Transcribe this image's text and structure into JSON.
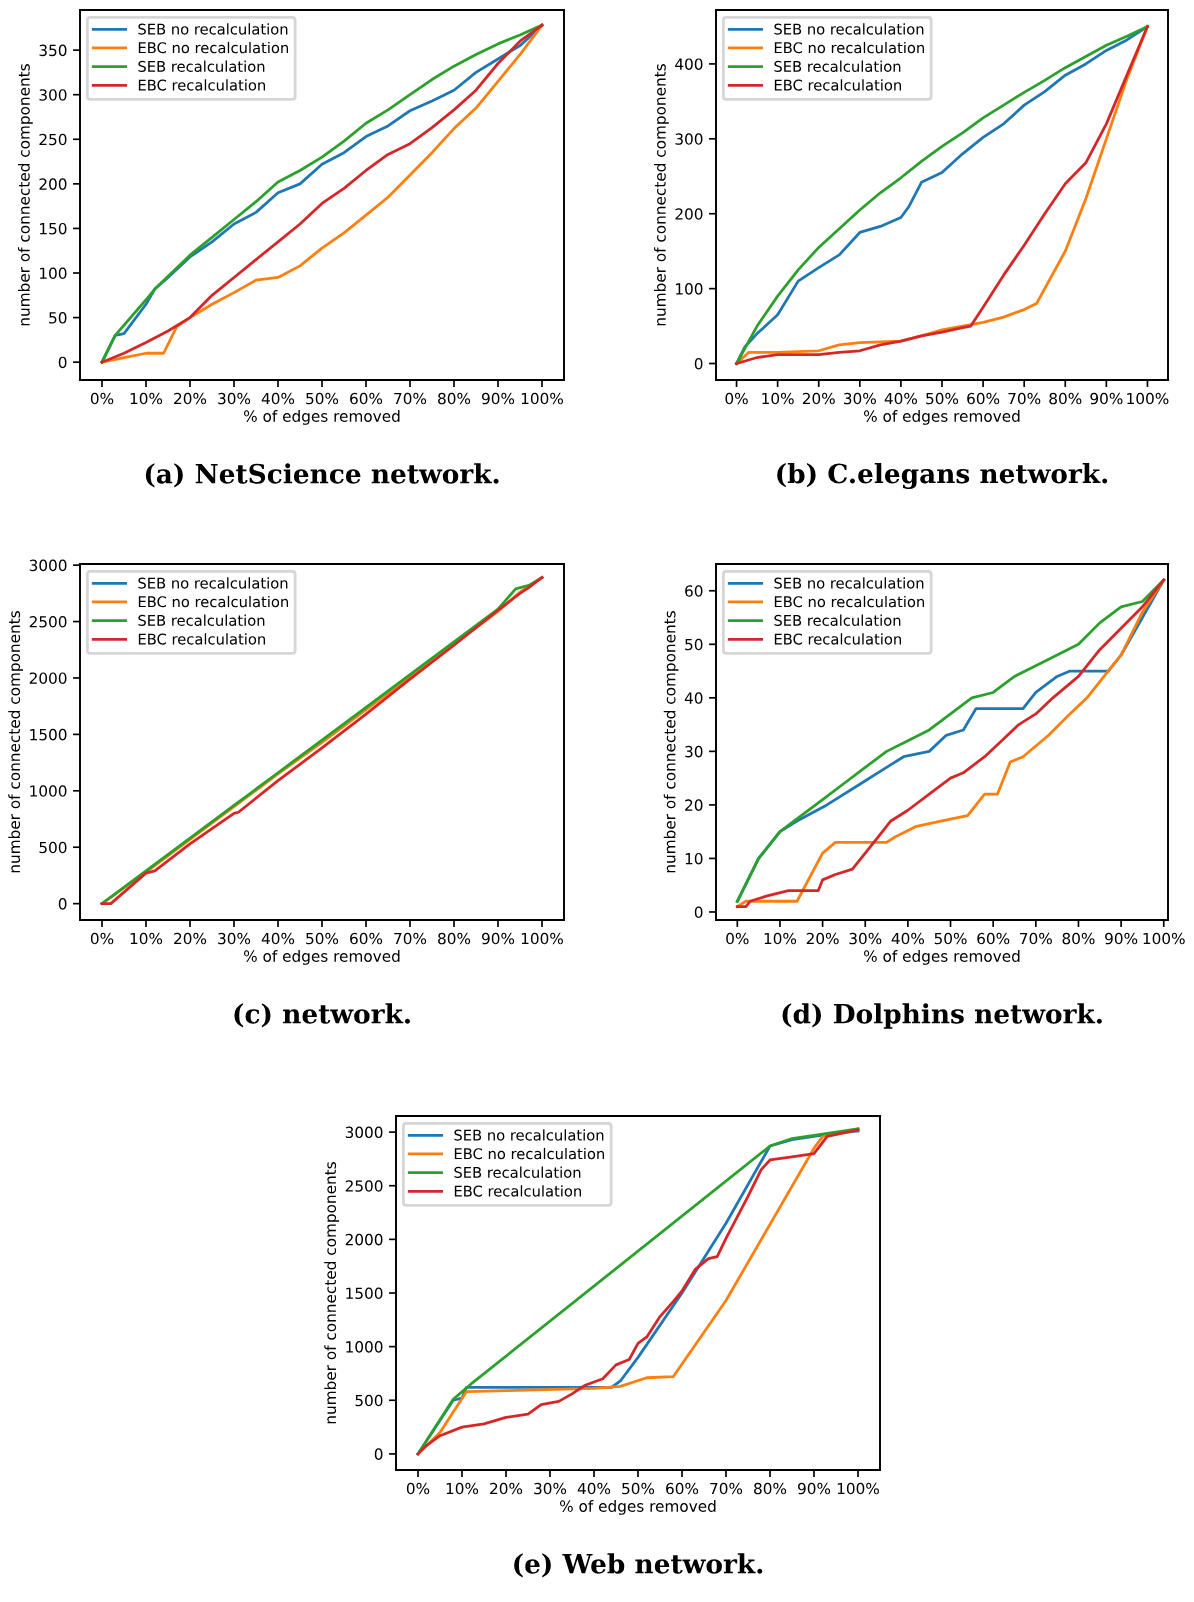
{
  "chart_data": [
    {
      "type": "line",
      "title": "(a) NetScience network.",
      "xlabel": "% of edges removed",
      "ylabel": "number of connected components",
      "xlim": [
        -5,
        105
      ],
      "ylim": [
        -20,
        395
      ],
      "xticks": [
        {
          "value": 0,
          "label": "0%"
        },
        {
          "value": 10,
          "label": "10%"
        },
        {
          "value": 20,
          "label": "20%"
        },
        {
          "value": 30,
          "label": "30%"
        },
        {
          "value": 40,
          "label": "40%"
        },
        {
          "value": 50,
          "label": "50%"
        },
        {
          "value": 60,
          "label": "60%"
        },
        {
          "value": 70,
          "label": "70%"
        },
        {
          "value": 80,
          "label": "80%"
        },
        {
          "value": 90,
          "label": "90%"
        },
        {
          "value": 100,
          "label": "100%"
        }
      ],
      "yticks": [
        0,
        50,
        100,
        150,
        200,
        250,
        300,
        350
      ],
      "grid": false,
      "legend": "top left",
      "series": [
        {
          "name": "SEB no recalculation",
          "color": "#1f77b4",
          "x": [
            0,
            3,
            5,
            10,
            12,
            15,
            20,
            25,
            30,
            35,
            40,
            45,
            50,
            55,
            60,
            65,
            70,
            75,
            80,
            85,
            90,
            95,
            100
          ],
          "values": [
            0,
            30,
            32,
            65,
            82,
            95,
            118,
            135,
            155,
            168,
            190,
            200,
            222,
            235,
            253,
            265,
            282,
            293,
            305,
            325,
            340,
            355,
            378
          ]
        },
        {
          "name": "EBC no recalculation",
          "color": "#ff7f0e",
          "x": [
            0,
            5,
            10,
            14,
            17,
            20,
            25,
            30,
            35,
            40,
            45,
            50,
            55,
            60,
            65,
            70,
            75,
            80,
            85,
            90,
            95,
            100
          ],
          "values": [
            0,
            5,
            10,
            10,
            40,
            50,
            65,
            78,
            92,
            95,
            108,
            128,
            145,
            165,
            185,
            210,
            235,
            262,
            285,
            315,
            345,
            378
          ]
        },
        {
          "name": "SEB recalculation",
          "color": "#2ca02c",
          "x": [
            0,
            3,
            10,
            12,
            20,
            25,
            30,
            35,
            40,
            45,
            50,
            55,
            60,
            65,
            70,
            75,
            80,
            85,
            90,
            95,
            100
          ],
          "values": [
            0,
            30,
            70,
            82,
            120,
            140,
            160,
            180,
            202,
            215,
            230,
            248,
            268,
            283,
            300,
            317,
            332,
            345,
            357,
            367,
            378
          ]
        },
        {
          "name": "EBC recalculation",
          "color": "#d62728",
          "x": [
            0,
            5,
            10,
            15,
            20,
            25,
            30,
            35,
            40,
            45,
            50,
            55,
            60,
            65,
            70,
            75,
            80,
            85,
            90,
            95,
            100
          ],
          "values": [
            0,
            10,
            22,
            35,
            50,
            75,
            95,
            115,
            135,
            155,
            178,
            195,
            215,
            233,
            245,
            263,
            283,
            305,
            335,
            360,
            378
          ]
        }
      ]
    },
    {
      "type": "line",
      "title": "(b) C.elegans network.",
      "xlabel": "% of edges removed",
      "ylabel": "number of connected components",
      "xlim": [
        -5,
        105
      ],
      "ylim": [
        -22,
        472
      ],
      "xticks": [
        {
          "value": 0,
          "label": "0%"
        },
        {
          "value": 10,
          "label": "10%"
        },
        {
          "value": 20,
          "label": "20%"
        },
        {
          "value": 30,
          "label": "30%"
        },
        {
          "value": 40,
          "label": "40%"
        },
        {
          "value": 50,
          "label": "50%"
        },
        {
          "value": 60,
          "label": "60%"
        },
        {
          "value": 70,
          "label": "70%"
        },
        {
          "value": 80,
          "label": "80%"
        },
        {
          "value": 90,
          "label": "90%"
        },
        {
          "value": 100,
          "label": "100%"
        }
      ],
      "yticks": [
        0,
        100,
        200,
        300,
        400
      ],
      "grid": false,
      "legend": "top left",
      "series": [
        {
          "name": "SEB no recalculation",
          "color": "#1f77b4",
          "x": [
            0,
            2,
            5,
            10,
            15,
            20,
            25,
            30,
            35,
            40,
            42,
            45,
            50,
            55,
            60,
            65,
            70,
            75,
            80,
            85,
            90,
            95,
            100
          ],
          "values": [
            0,
            22,
            40,
            65,
            110,
            128,
            145,
            175,
            183,
            195,
            210,
            242,
            255,
            280,
            302,
            320,
            345,
            363,
            385,
            400,
            418,
            432,
            450
          ]
        },
        {
          "name": "EBC no recalculation",
          "color": "#ff7f0e",
          "x": [
            0,
            3,
            10,
            20,
            25,
            30,
            40,
            45,
            50,
            55,
            60,
            65,
            70,
            73,
            75,
            80,
            85,
            90,
            95,
            100
          ],
          "values": [
            0,
            15,
            15,
            17,
            25,
            28,
            30,
            37,
            45,
            50,
            55,
            62,
            72,
            80,
            100,
            150,
            220,
            300,
            380,
            450
          ]
        },
        {
          "name": "SEB recalculation",
          "color": "#2ca02c",
          "x": [
            0,
            5,
            10,
            15,
            20,
            25,
            30,
            35,
            40,
            45,
            50,
            55,
            60,
            65,
            70,
            75,
            80,
            85,
            90,
            95,
            100
          ],
          "values": [
            0,
            50,
            90,
            125,
            155,
            180,
            205,
            228,
            248,
            270,
            290,
            308,
            328,
            345,
            362,
            378,
            395,
            410,
            425,
            437,
            450
          ]
        },
        {
          "name": "EBC recalculation",
          "color": "#d62728",
          "x": [
            0,
            5,
            10,
            20,
            25,
            30,
            35,
            40,
            45,
            50,
            55,
            57,
            60,
            65,
            70,
            75,
            80,
            85,
            90,
            95,
            100
          ],
          "values": [
            0,
            8,
            12,
            12,
            15,
            17,
            25,
            30,
            37,
            42,
            48,
            50,
            75,
            118,
            158,
            200,
            240,
            268,
            320,
            385,
            450
          ]
        }
      ]
    },
    {
      "type": "line",
      "title": "(c) network.",
      "xlabel": "% of edges removed",
      "ylabel": "number of connected components",
      "xlim": [
        -5,
        105
      ],
      "ylim": [
        -145,
        3010
      ],
      "xticks": [
        {
          "value": 0,
          "label": "0%"
        },
        {
          "value": 10,
          "label": "10%"
        },
        {
          "value": 20,
          "label": "20%"
        },
        {
          "value": 30,
          "label": "30%"
        },
        {
          "value": 40,
          "label": "40%"
        },
        {
          "value": 50,
          "label": "50%"
        },
        {
          "value": 60,
          "label": "60%"
        },
        {
          "value": 70,
          "label": "70%"
        },
        {
          "value": 80,
          "label": "80%"
        },
        {
          "value": 90,
          "label": "90%"
        },
        {
          "value": 100,
          "label": "100%"
        }
      ],
      "yticks": [
        0,
        500,
        1000,
        1500,
        2000,
        2500,
        3000
      ],
      "grid": false,
      "legend": "top left",
      "series": [
        {
          "name": "SEB no recalculation",
          "color": "#1f77b4"
        },
        {
          "name": "EBC no recalculation",
          "color": "#ff7f0e",
          "x": [
            0,
            10,
            20,
            30,
            40,
            50,
            60,
            70,
            80,
            90,
            95,
            100
          ],
          "values": [
            0,
            280,
            570,
            860,
            1150,
            1430,
            1720,
            2010,
            2300,
            2590,
            2760,
            2890
          ]
        },
        {
          "name": "SEB recalculation",
          "color": "#2ca02c",
          "x": [
            0,
            10,
            20,
            30,
            40,
            50,
            60,
            70,
            80,
            90,
            94,
            97,
            100
          ],
          "values": [
            0,
            290,
            580,
            870,
            1160,
            1450,
            1740,
            2030,
            2320,
            2610,
            2790,
            2820,
            2890
          ]
        },
        {
          "name": "EBC recalculation",
          "color": "#d62728",
          "x": [
            0,
            2,
            10,
            12,
            20,
            30,
            31,
            40,
            50,
            60,
            70,
            80,
            90,
            95,
            97,
            100
          ],
          "values": [
            0,
            0,
            270,
            290,
            530,
            800,
            810,
            1090,
            1380,
            1680,
            1990,
            2290,
            2600,
            2750,
            2800,
            2890
          ]
        }
      ]
    },
    {
      "type": "line",
      "title": "(d) Dolphins network.",
      "xlabel": "% of edges removed",
      "ylabel": "number of connected components",
      "xlim": [
        -5,
        101
      ],
      "ylim": [
        -1.5,
        65
      ],
      "xticks": [
        {
          "value": 0,
          "label": "0%"
        },
        {
          "value": 10,
          "label": "10%"
        },
        {
          "value": 20,
          "label": "20%"
        },
        {
          "value": 30,
          "label": "30%"
        },
        {
          "value": 40,
          "label": "40%"
        },
        {
          "value": 50,
          "label": "50%"
        },
        {
          "value": 60,
          "label": "60%"
        },
        {
          "value": 70,
          "label": "70%"
        },
        {
          "value": 80,
          "label": "80%"
        },
        {
          "value": 90,
          "label": "90%"
        },
        {
          "value": 100,
          "label": "100%"
        }
      ],
      "yticks": [
        0,
        10,
        20,
        30,
        40,
        50,
        60
      ],
      "grid": false,
      "legend": "top left",
      "series": [
        {
          "name": "SEB no recalculation",
          "color": "#1f77b4",
          "x": [
            0,
            5,
            10,
            14,
            21,
            29,
            35,
            39,
            45,
            49,
            53,
            56,
            67,
            70,
            75,
            78,
            87,
            90,
            95,
            100
          ],
          "values": [
            2,
            10,
            15,
            17,
            20,
            24,
            27,
            29,
            30,
            33,
            34,
            38,
            38,
            41,
            44,
            45,
            45,
            48,
            55,
            62
          ]
        },
        {
          "name": "EBC no recalculation",
          "color": "#ff7f0e",
          "x": [
            0,
            2,
            14,
            20,
            23,
            35,
            37,
            42,
            48,
            54,
            58,
            61,
            64,
            67,
            70,
            73,
            78,
            82,
            88,
            90,
            95,
            100
          ],
          "values": [
            1,
            2,
            2,
            11,
            13,
            13,
            14,
            16,
            17,
            18,
            22,
            22,
            28,
            29,
            31,
            33,
            37,
            40,
            46,
            48,
            56,
            62
          ]
        },
        {
          "name": "SEB recalculation",
          "color": "#2ca02c",
          "x": [
            0,
            5,
            10,
            15,
            20,
            25,
            30,
            35,
            40,
            45,
            50,
            55,
            60,
            65,
            70,
            75,
            80,
            85,
            90,
            95,
            100
          ],
          "values": [
            2,
            10,
            15,
            18,
            21,
            24,
            27,
            30,
            32,
            34,
            37,
            40,
            41,
            44,
            46,
            48,
            50,
            54,
            57,
            58,
            62
          ]
        },
        {
          "name": "EBC recalculation",
          "color": "#d62728",
          "x": [
            0,
            2,
            3,
            7,
            12,
            19,
            20,
            23,
            27,
            30,
            33,
            36,
            40,
            45,
            50,
            53,
            58,
            62,
            66,
            70,
            74,
            80,
            85,
            90,
            95,
            100
          ],
          "values": [
            1,
            1,
            2,
            3,
            4,
            4,
            6,
            7,
            8,
            11,
            14,
            17,
            19,
            22,
            25,
            26,
            29,
            32,
            35,
            37,
            40,
            44,
            49,
            53,
            57,
            62
          ]
        }
      ]
    },
    {
      "type": "line",
      "title": "(e) Web network.",
      "xlabel": "% of edges removed",
      "ylabel": "number of connected components",
      "xlim": [
        -5,
        105
      ],
      "ylim": [
        -150,
        3150
      ],
      "xticks": [
        {
          "value": 0,
          "label": "0%"
        },
        {
          "value": 10,
          "label": "10%"
        },
        {
          "value": 20,
          "label": "20%"
        },
        {
          "value": 30,
          "label": "30%"
        },
        {
          "value": 40,
          "label": "40%"
        },
        {
          "value": 50,
          "label": "50%"
        },
        {
          "value": 60,
          "label": "60%"
        },
        {
          "value": 70,
          "label": "70%"
        },
        {
          "value": 80,
          "label": "80%"
        },
        {
          "value": 90,
          "label": "90%"
        },
        {
          "value": 100,
          "label": "100%"
        }
      ],
      "yticks": [
        0,
        500,
        1000,
        1500,
        2000,
        2500,
        3000
      ],
      "grid": false,
      "legend": "top left",
      "series": [
        {
          "name": "SEB no recalculation",
          "color": "#1f77b4",
          "x": [
            0,
            8,
            10,
            11,
            44,
            46,
            50,
            60,
            70,
            80,
            85,
            90,
            95,
            100
          ],
          "values": [
            0,
            500,
            520,
            620,
            620,
            680,
            900,
            1500,
            2150,
            2870,
            2930,
            2960,
            2990,
            3010
          ]
        },
        {
          "name": "EBC no recalculation",
          "color": "#ff7f0e",
          "x": [
            0,
            5,
            11,
            20,
            40,
            46,
            52,
            58,
            70,
            80,
            90,
            92,
            100
          ],
          "values": [
            0,
            200,
            580,
            590,
            610,
            630,
            710,
            720,
            1430,
            2140,
            2850,
            2960,
            3030
          ]
        },
        {
          "name": "SEB recalculation",
          "color": "#2ca02c",
          "x": [
            0,
            8,
            12,
            80,
            85,
            90,
            100
          ],
          "values": [
            0,
            510,
            650,
            2870,
            2940,
            2970,
            3030
          ]
        },
        {
          "name": "EBC recalculation",
          "color": "#d62728",
          "x": [
            0,
            2,
            5,
            10,
            15,
            20,
            25,
            28,
            32,
            35,
            38,
            42,
            45,
            48,
            50,
            52,
            55,
            58,
            60,
            63,
            66,
            68,
            70,
            75,
            78,
            80,
            85,
            90,
            93,
            100
          ],
          "values": [
            0,
            80,
            170,
            250,
            280,
            340,
            370,
            460,
            490,
            560,
            640,
            700,
            830,
            880,
            1030,
            1090,
            1280,
            1420,
            1520,
            1720,
            1820,
            1840,
            2010,
            2400,
            2650,
            2740,
            2770,
            2800,
            2960,
            3020
          ]
        }
      ]
    }
  ]
}
